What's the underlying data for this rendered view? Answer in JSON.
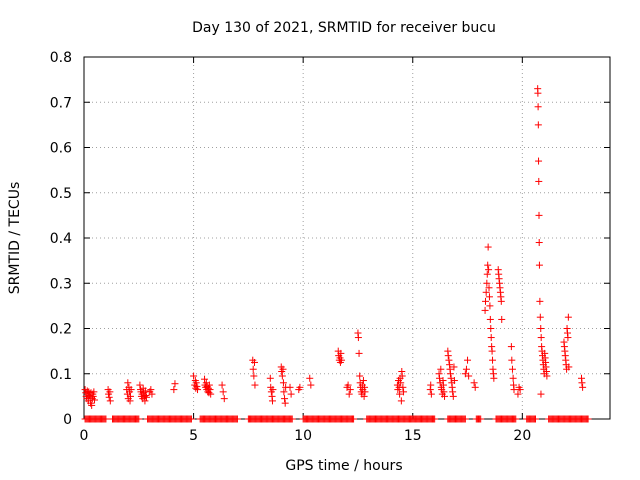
{
  "chart_data": {
    "type": "scatter",
    "title": "Day 130 of 2021, SRMTID for receiver bucu",
    "xlabel": "GPS time / hours",
    "ylabel": "SRMTID / TECUs",
    "xlim": [
      0,
      24
    ],
    "ylim": [
      0,
      0.8
    ],
    "xticks": [
      0,
      5,
      10,
      15,
      20
    ],
    "xtick_labels": [
      "0",
      "5",
      "10",
      "15",
      "20"
    ],
    "yticks": [
      0,
      0.1,
      0.2,
      0.3,
      0.4,
      0.5,
      0.6,
      0.7,
      0.8
    ],
    "ytick_labels": [
      "0",
      "0.1",
      "0.2",
      "0.3",
      "0.4",
      "0.5",
      "0.6",
      "0.7",
      "0.8"
    ],
    "grid": true,
    "marker": "+",
    "color": "#ff0000",
    "series": [
      {
        "name": "bucu",
        "points": [
          [
            0.05,
            0.065
          ],
          [
            0.08,
            0.058
          ],
          [
            0.1,
            0.05
          ],
          [
            0.13,
            0.045
          ],
          [
            0.15,
            0.062
          ],
          [
            0.18,
            0.055
          ],
          [
            0.2,
            0.04
          ],
          [
            0.22,
            0.06
          ],
          [
            0.25,
            0.052
          ],
          [
            0.28,
            0.048
          ],
          [
            0.3,
            0.035
          ],
          [
            0.32,
            0.058
          ],
          [
            0.35,
            0.03
          ],
          [
            0.38,
            0.045
          ],
          [
            0.4,
            0.055
          ],
          [
            0.42,
            0.05
          ],
          [
            0.45,
            0.06
          ],
          [
            0.48,
            0.042
          ],
          [
            1.1,
            0.065
          ],
          [
            1.12,
            0.055
          ],
          [
            1.15,
            0.048
          ],
          [
            1.18,
            0.06
          ],
          [
            1.2,
            0.04
          ],
          [
            1.95,
            0.065
          ],
          [
            1.98,
            0.055
          ],
          [
            2.0,
            0.08
          ],
          [
            2.02,
            0.045
          ],
          [
            2.05,
            0.07
          ],
          [
            2.08,
            0.06
          ],
          [
            2.1,
            0.04
          ],
          [
            2.12,
            0.05
          ],
          [
            2.15,
            0.065
          ],
          [
            2.55,
            0.075
          ],
          [
            2.58,
            0.065
          ],
          [
            2.6,
            0.06
          ],
          [
            2.62,
            0.05
          ],
          [
            2.65,
            0.055
          ],
          [
            2.68,
            0.045
          ],
          [
            2.7,
            0.068
          ],
          [
            2.72,
            0.058
          ],
          [
            2.75,
            0.05
          ],
          [
            2.78,
            0.04
          ],
          [
            2.8,
            0.062
          ],
          [
            2.82,
            0.052
          ],
          [
            2.85,
            0.048
          ],
          [
            3.0,
            0.06
          ],
          [
            3.05,
            0.065
          ],
          [
            3.1,
            0.055
          ],
          [
            4.1,
            0.065
          ],
          [
            4.15,
            0.078
          ],
          [
            5.0,
            0.095
          ],
          [
            5.05,
            0.075
          ],
          [
            5.08,
            0.085
          ],
          [
            5.1,
            0.068
          ],
          [
            5.12,
            0.08
          ],
          [
            5.15,
            0.072
          ],
          [
            5.18,
            0.065
          ],
          [
            5.5,
            0.088
          ],
          [
            5.52,
            0.075
          ],
          [
            5.55,
            0.07
          ],
          [
            5.58,
            0.08
          ],
          [
            5.6,
            0.065
          ],
          [
            5.62,
            0.072
          ],
          [
            5.65,
            0.06
          ],
          [
            5.68,
            0.068
          ],
          [
            5.7,
            0.058
          ],
          [
            5.72,
            0.075
          ],
          [
            5.75,
            0.065
          ],
          [
            5.78,
            0.055
          ],
          [
            6.3,
            0.075
          ],
          [
            6.35,
            0.06
          ],
          [
            6.4,
            0.045
          ],
          [
            7.7,
            0.13
          ],
          [
            7.72,
            0.11
          ],
          [
            7.75,
            0.095
          ],
          [
            7.78,
            0.125
          ],
          [
            7.8,
            0.075
          ],
          [
            8.5,
            0.09
          ],
          [
            8.52,
            0.07
          ],
          [
            8.55,
            0.06
          ],
          [
            8.58,
            0.05
          ],
          [
            8.6,
            0.04
          ],
          [
            8.62,
            0.065
          ],
          [
            9.0,
            0.115
          ],
          [
            9.02,
            0.105
          ],
          [
            9.05,
            0.095
          ],
          [
            9.08,
            0.11
          ],
          [
            9.1,
            0.08
          ],
          [
            9.12,
            0.06
          ],
          [
            9.15,
            0.045
          ],
          [
            9.18,
            0.035
          ],
          [
            9.2,
            0.07
          ],
          [
            9.4,
            0.07
          ],
          [
            9.45,
            0.055
          ],
          [
            9.8,
            0.065
          ],
          [
            9.85,
            0.07
          ],
          [
            10.3,
            0.09
          ],
          [
            10.35,
            0.075
          ],
          [
            11.6,
            0.15
          ],
          [
            11.62,
            0.14
          ],
          [
            11.65,
            0.13
          ],
          [
            11.68,
            0.135
          ],
          [
            11.7,
            0.125
          ],
          [
            11.72,
            0.145
          ],
          [
            11.75,
            0.13
          ],
          [
            12.0,
            0.07
          ],
          [
            12.05,
            0.075
          ],
          [
            12.1,
            0.055
          ],
          [
            12.15,
            0.065
          ],
          [
            12.5,
            0.19
          ],
          [
            12.52,
            0.18
          ],
          [
            12.55,
            0.145
          ],
          [
            12.58,
            0.095
          ],
          [
            12.6,
            0.08
          ],
          [
            12.62,
            0.07
          ],
          [
            12.65,
            0.06
          ],
          [
            12.68,
            0.055
          ],
          [
            12.7,
            0.075
          ],
          [
            12.72,
            0.065
          ],
          [
            12.75,
            0.085
          ],
          [
            12.78,
            0.05
          ],
          [
            12.8,
            0.07
          ],
          [
            12.82,
            0.06
          ],
          [
            14.3,
            0.075
          ],
          [
            14.32,
            0.065
          ],
          [
            14.35,
            0.085
          ],
          [
            14.38,
            0.07
          ],
          [
            14.4,
            0.055
          ],
          [
            14.42,
            0.09
          ],
          [
            14.45,
            0.08
          ],
          [
            14.48,
            0.04
          ],
          [
            14.5,
            0.105
          ],
          [
            14.52,
            0.095
          ],
          [
            14.55,
            0.07
          ],
          [
            14.58,
            0.06
          ],
          [
            15.8,
            0.065
          ],
          [
            15.82,
            0.075
          ],
          [
            15.85,
            0.055
          ],
          [
            16.2,
            0.1
          ],
          [
            16.22,
            0.09
          ],
          [
            16.25,
            0.08
          ],
          [
            16.28,
            0.11
          ],
          [
            16.3,
            0.07
          ],
          [
            16.32,
            0.065
          ],
          [
            16.35,
            0.055
          ],
          [
            16.38,
            0.085
          ],
          [
            16.4,
            0.075
          ],
          [
            16.42,
            0.06
          ],
          [
            16.45,
            0.05
          ],
          [
            16.6,
            0.15
          ],
          [
            16.62,
            0.14
          ],
          [
            16.65,
            0.13
          ],
          [
            16.68,
            0.12
          ],
          [
            16.7,
            0.11
          ],
          [
            16.72,
            0.1
          ],
          [
            16.75,
            0.09
          ],
          [
            16.78,
            0.08
          ],
          [
            16.8,
            0.07
          ],
          [
            16.82,
            0.06
          ],
          [
            16.85,
            0.05
          ],
          [
            16.88,
            0.115
          ],
          [
            16.9,
            0.085
          ],
          [
            17.4,
            0.1
          ],
          [
            17.45,
            0.11
          ],
          [
            17.5,
            0.13
          ],
          [
            17.55,
            0.095
          ],
          [
            17.8,
            0.08
          ],
          [
            17.85,
            0.07
          ],
          [
            18.3,
            0.24
          ],
          [
            18.32,
            0.26
          ],
          [
            18.35,
            0.28
          ],
          [
            18.38,
            0.3
          ],
          [
            18.4,
            0.32
          ],
          [
            18.42,
            0.34
          ],
          [
            18.44,
            0.38
          ],
          [
            18.46,
            0.33
          ],
          [
            18.48,
            0.29
          ],
          [
            18.5,
            0.27
          ],
          [
            18.52,
            0.25
          ],
          [
            18.54,
            0.22
          ],
          [
            18.56,
            0.2
          ],
          [
            18.58,
            0.18
          ],
          [
            18.6,
            0.16
          ],
          [
            18.62,
            0.15
          ],
          [
            18.64,
            0.13
          ],
          [
            18.66,
            0.11
          ],
          [
            18.68,
            0.1
          ],
          [
            18.7,
            0.09
          ],
          [
            18.9,
            0.33
          ],
          [
            18.92,
            0.32
          ],
          [
            18.94,
            0.31
          ],
          [
            18.96,
            0.3
          ],
          [
            18.98,
            0.29
          ],
          [
            19.0,
            0.28
          ],
          [
            19.02,
            0.27
          ],
          [
            19.04,
            0.26
          ],
          [
            19.06,
            0.22
          ],
          [
            19.5,
            0.16
          ],
          [
            19.52,
            0.13
          ],
          [
            19.55,
            0.11
          ],
          [
            19.58,
            0.09
          ],
          [
            19.6,
            0.075
          ],
          [
            19.62,
            0.065
          ],
          [
            19.8,
            0.055
          ],
          [
            19.85,
            0.07
          ],
          [
            19.9,
            0.065
          ],
          [
            20.7,
            0.73
          ],
          [
            20.71,
            0.72
          ],
          [
            20.72,
            0.69
          ],
          [
            20.73,
            0.65
          ],
          [
            20.74,
            0.57
          ],
          [
            20.75,
            0.525
          ],
          [
            20.76,
            0.45
          ],
          [
            20.77,
            0.39
          ],
          [
            20.78,
            0.34
          ],
          [
            20.8,
            0.26
          ],
          [
            20.82,
            0.225
          ],
          [
            20.84,
            0.2
          ],
          [
            20.86,
            0.18
          ],
          [
            20.88,
            0.16
          ],
          [
            20.9,
            0.15
          ],
          [
            20.92,
            0.14
          ],
          [
            20.94,
            0.13
          ],
          [
            20.96,
            0.12
          ],
          [
            20.98,
            0.11
          ],
          [
            21.0,
            0.1
          ],
          [
            21.02,
            0.145
          ],
          [
            21.04,
            0.135
          ],
          [
            21.06,
            0.125
          ],
          [
            21.08,
            0.115
          ],
          [
            21.1,
            0.105
          ],
          [
            21.12,
            0.095
          ],
          [
            20.85,
            0.055
          ],
          [
            21.9,
            0.17
          ],
          [
            21.92,
            0.16
          ],
          [
            21.94,
            0.15
          ],
          [
            21.96,
            0.14
          ],
          [
            21.98,
            0.13
          ],
          [
            22.0,
            0.12
          ],
          [
            22.02,
            0.11
          ],
          [
            22.04,
            0.2
          ],
          [
            22.06,
            0.19
          ],
          [
            22.08,
            0.18
          ],
          [
            22.1,
            0.225
          ],
          [
            22.12,
            0.115
          ],
          [
            22.7,
            0.09
          ],
          [
            22.72,
            0.08
          ],
          [
            22.75,
            0.07
          ]
        ],
        "zero_segments": [
          [
            0.05,
            0.55
          ],
          [
            0.6,
            1.0
          ],
          [
            1.3,
            2.5
          ],
          [
            2.9,
            4.9
          ],
          [
            5.3,
            7.0
          ],
          [
            7.5,
            9.5
          ],
          [
            10.0,
            12.3
          ],
          [
            12.9,
            16.0
          ],
          [
            16.6,
            17.4
          ],
          [
            17.9,
            18.1
          ],
          [
            18.8,
            19.7
          ],
          [
            20.2,
            20.6
          ],
          [
            21.2,
            23.0
          ]
        ]
      }
    ]
  }
}
